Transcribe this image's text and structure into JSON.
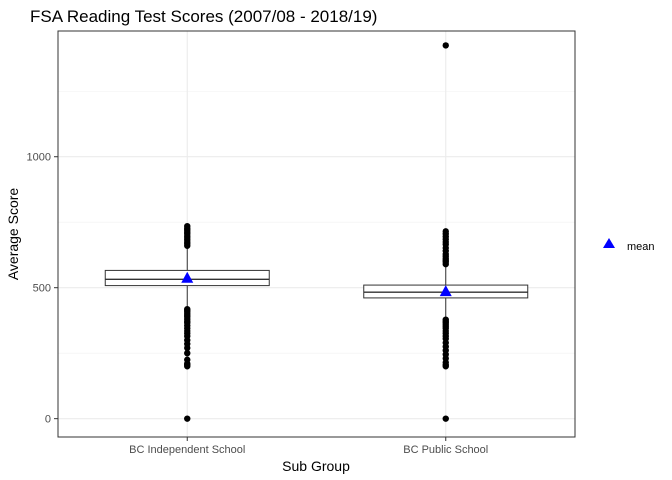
{
  "chart_data": {
    "type": "box",
    "title": "FSA Reading Test Scores (2007/08 - 2018/19)",
    "xlabel": "Sub Group",
    "ylabel": "Average Score",
    "categories": [
      "BC Independent School",
      "BC Public School"
    ],
    "ylim": [
      -70,
      1480
    ],
    "yticks": [
      0,
      500,
      1000
    ],
    "ytick_labels": [
      "0",
      "500",
      "1000"
    ],
    "grid": true,
    "legend": {
      "placement": "right",
      "entries": [
        {
          "label": "mean",
          "marker": "triangle",
          "color": "#0000ff"
        }
      ]
    },
    "boxes": [
      {
        "category": "BC Independent School",
        "q1": 508,
        "median": 532,
        "q3": 566,
        "whisker_low": 422,
        "whisker_high": 651,
        "mean": 538,
        "outliers": [
          0,
          200,
          205,
          210,
          225,
          250,
          270,
          285,
          300,
          315,
          325,
          335,
          345,
          355,
          365,
          372,
          380,
          388,
          395,
          402,
          408,
          414,
          418,
          660,
          668,
          675,
          682,
          690,
          697,
          705,
          712,
          720,
          727,
          735
        ]
      },
      {
        "category": "BC Public School",
        "q1": 461,
        "median": 483,
        "q3": 510,
        "whisker_low": 382,
        "whisker_high": 582,
        "mean": 487,
        "outliers": [
          0,
          200,
          205,
          215,
          230,
          245,
          260,
          275,
          290,
          305,
          315,
          325,
          335,
          345,
          352,
          360,
          366,
          372,
          378,
          590,
          598,
          605,
          612,
          620,
          628,
          640,
          652,
          665,
          675,
          685,
          695,
          705,
          715,
          1425
        ]
      }
    ]
  }
}
